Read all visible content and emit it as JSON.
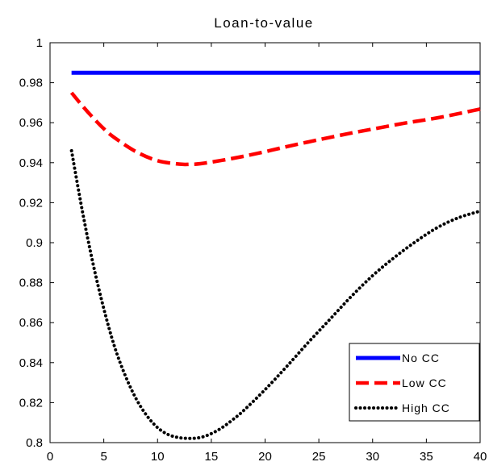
{
  "chart_data": {
    "type": "line",
    "title": "Loan-to-value",
    "xlabel": "",
    "ylabel": "",
    "xlim": [
      0,
      40
    ],
    "ylim": [
      0.8,
      1.0
    ],
    "xticks": [
      0,
      5,
      10,
      15,
      20,
      25,
      30,
      35,
      40
    ],
    "xtick_labels": [
      "0",
      "5",
      "10",
      "15",
      "20",
      "25",
      "30",
      "35",
      "40"
    ],
    "yticks": [
      0.8,
      0.82,
      0.84,
      0.86,
      0.88,
      0.9,
      0.92,
      0.94,
      0.96,
      0.98,
      1.0
    ],
    "ytick_labels": [
      "0.8",
      "0.82",
      "0.84",
      "0.86",
      "0.88",
      "0.9",
      "0.92",
      "0.94",
      "0.96",
      "0.98",
      "1"
    ],
    "grid": false,
    "legend_position": "bottom-right",
    "series": [
      {
        "name": "No CC",
        "color": "#0000ff",
        "style": "solid",
        "x": [
          2,
          5,
          10,
          15,
          20,
          25,
          30,
          35,
          40
        ],
        "y": [
          0.985,
          0.985,
          0.985,
          0.985,
          0.985,
          0.985,
          0.985,
          0.985,
          0.985
        ]
      },
      {
        "name": "Low CC",
        "color": "#ff0000",
        "style": "dashed",
        "x": [
          2,
          3,
          4,
          5,
          6,
          8,
          10,
          12,
          13,
          14,
          16,
          18,
          20,
          22,
          25,
          28,
          30,
          33,
          36,
          40
        ],
        "y": [
          0.975,
          0.9685,
          0.9625,
          0.957,
          0.9525,
          0.9455,
          0.941,
          0.9393,
          0.9392,
          0.9395,
          0.9412,
          0.9432,
          0.9455,
          0.948,
          0.9515,
          0.9548,
          0.9568,
          0.9598,
          0.9624,
          0.9668
        ]
      },
      {
        "name": "High CC",
        "color": "#000000",
        "style": "dotted",
        "x": [
          2,
          3,
          4,
          5,
          6,
          7,
          8,
          9,
          10,
          11,
          12,
          13,
          14,
          15,
          16,
          17,
          18,
          20,
          22,
          24,
          26,
          28,
          30,
          32,
          34,
          36,
          38,
          40
        ],
        "y": [
          0.946,
          0.916,
          0.8895,
          0.867,
          0.848,
          0.8335,
          0.822,
          0.8135,
          0.8075,
          0.804,
          0.8025,
          0.8021,
          0.8026,
          0.8045,
          0.8075,
          0.8115,
          0.816,
          0.8265,
          0.838,
          0.85,
          0.8615,
          0.873,
          0.8835,
          0.8925,
          0.9005,
          0.9075,
          0.9125,
          0.9158
        ]
      }
    ]
  }
}
